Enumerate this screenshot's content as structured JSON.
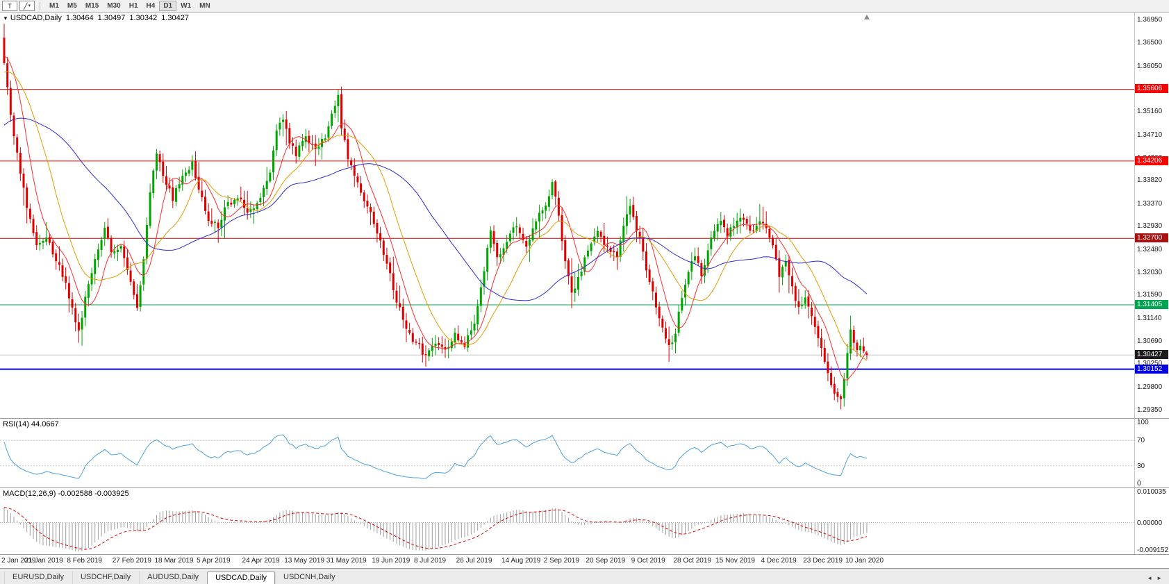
{
  "toolbar": {
    "tool_button_label": "T",
    "objects_icon": "╱",
    "caret_icon": "▾",
    "timeframes": [
      "M1",
      "M5",
      "M15",
      "M30",
      "H1",
      "H4",
      "D1",
      "W1",
      "MN"
    ],
    "active_timeframe": "D1"
  },
  "chart_header": {
    "collapse_icon": "▼",
    "symbol": "USDCAD,Daily",
    "open": "1.30464",
    "high": "1.30497",
    "low": "1.30342",
    "close": "1.30427"
  },
  "rsi_panel": {
    "label": "RSI(14) 44.0667"
  },
  "macd_panel": {
    "label": "MACD(12,26,9) -0.002588 -0.003925"
  },
  "tab_bar": {
    "tabs": [
      {
        "label": "EURUSD,Daily",
        "active": false
      },
      {
        "label": "USDCHF,Daily",
        "active": false
      },
      {
        "label": "AUDUSD,Daily",
        "active": false
      },
      {
        "label": "USDCAD,Daily",
        "active": true
      },
      {
        "label": "USDCNH,Daily",
        "active": false
      }
    ],
    "left_arrow": "◄",
    "right_arrow": "►"
  },
  "chart_data": {
    "type": "candlestick",
    "symbol": "USDCAD",
    "timeframe": "Daily",
    "ohlc": {
      "open": 1.30464,
      "high": 1.30497,
      "low": 1.30342,
      "close": 1.30427
    },
    "n_candles": 267,
    "y_axis": {
      "min": 1.292,
      "max": 1.371,
      "ticks": [
        "1.36950",
        "1.36500",
        "1.36050",
        "1.35600",
        "1.35160",
        "1.34710",
        "1.34260",
        "1.33820",
        "1.33370",
        "1.32930",
        "1.32480",
        "1.32030",
        "1.31590",
        "1.31140",
        "1.30690",
        "1.30250",
        "1.29800",
        "1.29350"
      ]
    },
    "hlines": [
      {
        "value": 1.35606,
        "color": "#FF0000",
        "width": 1
      },
      {
        "value": 1.34206,
        "color": "#FF0000",
        "width": 1
      },
      {
        "value": 1.327,
        "color": "#AA1111",
        "width": 1
      },
      {
        "value": 1.31405,
        "color": "#00A550",
        "width": 1
      },
      {
        "value": 1.30152,
        "color": "#0000E0",
        "width": 2
      },
      {
        "value": 1.30427,
        "color": "#C4C4C4",
        "width": 1
      }
    ],
    "axis_markers": [
      {
        "label": "1.35606",
        "value": 1.35606,
        "bg": "#FF0000"
      },
      {
        "label": "1.34206",
        "value": 1.34206,
        "bg": "#FF0000"
      },
      {
        "label": "1.32700",
        "value": 1.327,
        "bg": "#AA1111"
      },
      {
        "label": "1.31405",
        "value": 1.31405,
        "bg": "#00A550"
      },
      {
        "label": "1.30427",
        "value": 1.30427,
        "bg": "#1C1C1C"
      },
      {
        "label": "1.30152",
        "value": 1.30152,
        "bg": "#0000E0"
      }
    ],
    "pre_anchors": [
      [
        -60,
        1.328
      ],
      [
        -45,
        1.3335
      ],
      [
        -30,
        1.3425
      ],
      [
        -15,
        1.3545
      ],
      [
        -5,
        1.361
      ],
      [
        -1,
        1.366
      ]
    ],
    "anchors": [
      [
        0,
        1.361
      ],
      [
        1,
        1.3565
      ],
      [
        3,
        1.347
      ],
      [
        5,
        1.3395
      ],
      [
        7,
        1.333
      ],
      [
        10,
        1.3255
      ],
      [
        13,
        1.327
      ],
      [
        16,
        1.3225
      ],
      [
        19,
        1.3185
      ],
      [
        21,
        1.3135
      ],
      [
        23,
        1.309
      ],
      [
        25,
        1.3155
      ],
      [
        28,
        1.323
      ],
      [
        31,
        1.329
      ],
      [
        33,
        1.3245
      ],
      [
        36,
        1.3255
      ],
      [
        39,
        1.3185
      ],
      [
        41,
        1.3135
      ],
      [
        43,
        1.323
      ],
      [
        45,
        1.336
      ],
      [
        47,
        1.3435
      ],
      [
        49,
        1.339
      ],
      [
        52,
        1.3345
      ],
      [
        55,
        1.339
      ],
      [
        58,
        1.342
      ],
      [
        60,
        1.3365
      ],
      [
        63,
        1.3305
      ],
      [
        66,
        1.329
      ],
      [
        69,
        1.334
      ],
      [
        72,
        1.335
      ],
      [
        75,
        1.332
      ],
      [
        78,
        1.334
      ],
      [
        80,
        1.337
      ],
      [
        82,
        1.34
      ],
      [
        84,
        1.348
      ],
      [
        86,
        1.35
      ],
      [
        88,
        1.3455
      ],
      [
        90,
        1.343
      ],
      [
        93,
        1.347
      ],
      [
        96,
        1.3445
      ],
      [
        99,
        1.3465
      ],
      [
        102,
        1.353
      ],
      [
        103,
        1.3548
      ],
      [
        104,
        1.3485
      ],
      [
        106,
        1.3425
      ],
      [
        109,
        1.338
      ],
      [
        112,
        1.333
      ],
      [
        115,
        1.328
      ],
      [
        118,
        1.322
      ],
      [
        121,
        1.3145
      ],
      [
        124,
        1.3095
      ],
      [
        127,
        1.3065
      ],
      [
        130,
        1.3042
      ],
      [
        133,
        1.3065
      ],
      [
        136,
        1.3052
      ],
      [
        139,
        1.3085
      ],
      [
        142,
        1.306
      ],
      [
        145,
        1.3105
      ],
      [
        148,
        1.3205
      ],
      [
        150,
        1.3285
      ],
      [
        152,
        1.3235
      ],
      [
        155,
        1.3265
      ],
      [
        158,
        1.3295
      ],
      [
        161,
        1.3255
      ],
      [
        164,
        1.3305
      ],
      [
        167,
        1.3335
      ],
      [
        169,
        1.338
      ],
      [
        171,
        1.3315
      ],
      [
        173,
        1.3225
      ],
      [
        175,
        1.3165
      ],
      [
        177,
        1.3195
      ],
      [
        180,
        1.3245
      ],
      [
        183,
        1.3285
      ],
      [
        186,
        1.3255
      ],
      [
        189,
        1.3235
      ],
      [
        191,
        1.3295
      ],
      [
        193,
        1.3335
      ],
      [
        195,
        1.3285
      ],
      [
        197,
        1.3245
      ],
      [
        199,
        1.3185
      ],
      [
        201,
        1.3135
      ],
      [
        203,
        1.3095
      ],
      [
        205,
        1.3062
      ],
      [
        207,
        1.3085
      ],
      [
        209,
        1.3155
      ],
      [
        211,
        1.3205
      ],
      [
        213,
        1.3235
      ],
      [
        215,
        1.3195
      ],
      [
        217,
        1.3245
      ],
      [
        219,
        1.3285
      ],
      [
        221,
        1.3305
      ],
      [
        223,
        1.3275
      ],
      [
        225,
        1.3295
      ],
      [
        227,
        1.3312
      ],
      [
        229,
        1.33
      ],
      [
        231,
        1.3285
      ],
      [
        233,
        1.3305
      ],
      [
        235,
        1.329
      ],
      [
        237,
        1.3255
      ],
      [
        239,
        1.3195
      ],
      [
        241,
        1.3225
      ],
      [
        243,
        1.3175
      ],
      [
        245,
        1.3135
      ],
      [
        247,
        1.3155
      ],
      [
        249,
        1.312
      ],
      [
        251,
        1.3075
      ],
      [
        253,
        1.303
      ],
      [
        255,
        1.2985
      ],
      [
        257,
        1.2962
      ],
      [
        258,
        1.2958
      ],
      [
        259,
        1.2995
      ],
      [
        260,
        1.3045
      ],
      [
        261,
        1.3092
      ],
      [
        262,
        1.3065
      ],
      [
        263,
        1.3052
      ],
      [
        264,
        1.3062
      ],
      [
        265,
        1.3048
      ],
      [
        266,
        1.30427
      ]
    ],
    "wick_marks": [
      {
        "index": 0,
        "high": 1.3688
      },
      {
        "index": 23,
        "low": 1.3068
      },
      {
        "index": 103,
        "high": 1.3559
      },
      {
        "index": 130,
        "low": 1.3037
      },
      {
        "index": 169,
        "high": 1.3382
      },
      {
        "index": 175,
        "low": 1.3134
      },
      {
        "index": 205,
        "low": 1.3042
      },
      {
        "index": 258,
        "low": 1.2937
      }
    ],
    "date_labels": [
      {
        "index": 0,
        "label": "2 Jan 2019"
      },
      {
        "index": 13,
        "label": "21 Jan 2019"
      },
      {
        "index": 26,
        "label": "8 Feb 2019"
      },
      {
        "index": 40,
        "label": "27 Feb 2019"
      },
      {
        "index": 53,
        "label": "18 Mar 2019"
      },
      {
        "index": 66,
        "label": "5 Apr 2019"
      },
      {
        "index": 80,
        "label": "24 Apr 2019"
      },
      {
        "index": 93,
        "label": "13 May 2019"
      },
      {
        "index": 106,
        "label": "31 May 2019"
      },
      {
        "index": 120,
        "label": "19 Jun 2019"
      },
      {
        "index": 133,
        "label": "8 Jul 2019"
      },
      {
        "index": 146,
        "label": "26 Jul 2019"
      },
      {
        "index": 160,
        "label": "14 Aug 2019"
      },
      {
        "index": 173,
        "label": "2 Sep 2019"
      },
      {
        "index": 186,
        "label": "20 Sep 2019"
      },
      {
        "index": 200,
        "label": "9 Oct 2019"
      },
      {
        "index": 213,
        "label": "28 Oct 2019"
      },
      {
        "index": 226,
        "label": "15 Nov 2019"
      },
      {
        "index": 240,
        "label": "4 Dec 2019"
      },
      {
        "index": 253,
        "label": "23 Dec 2019"
      },
      {
        "index": 266,
        "label": "10 Jan 2020"
      }
    ],
    "ma_lines": [
      {
        "period": 8,
        "color": "#FF2A2A"
      },
      {
        "period": 17,
        "color": "#E39B00"
      },
      {
        "period": 45,
        "color": "#2B2BD4"
      }
    ],
    "candle_colors": {
      "bull": "#00A600",
      "bear": "#DE0000"
    },
    "rsi": {
      "period": 14,
      "value": 44.0667,
      "levels": [
        70,
        30
      ],
      "axis_labels": [
        "100",
        "70",
        "30",
        "0"
      ],
      "color": "#4AA0DC",
      "range": [
        0,
        100
      ]
    },
    "macd": {
      "fast": 12,
      "slow": 26,
      "signal": 9,
      "values": [
        -0.002588,
        -0.003925
      ],
      "axis_labels": {
        "top": "0.010035",
        "zero": "0.00000",
        "bottom": "-0.009152"
      },
      "range": [
        -0.009152,
        0.010035
      ],
      "hist_color": "#9E9E9E",
      "signal_color": "#E00000"
    },
    "shift_marker_color": "#8A8A8A"
  }
}
